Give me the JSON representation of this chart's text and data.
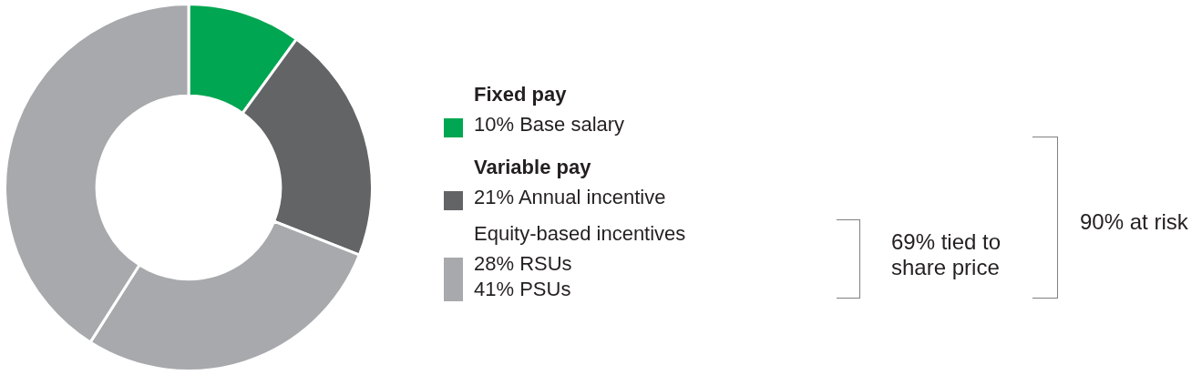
{
  "chart_data": {
    "type": "donut",
    "categories": [
      "Base salary",
      "Annual incentive",
      "RSUs",
      "PSUs"
    ],
    "values": [
      10,
      21,
      28,
      41
    ],
    "value_labels": [
      "10%",
      "21%",
      "28%",
      "41%"
    ],
    "colors": [
      "#00a651",
      "#636466",
      "#a7a9ac",
      "#a7a9ac"
    ],
    "legend": "right",
    "annotations": [
      "Fixed pay",
      "Variable pay",
      "Equity-based incentives",
      "69% tied to share price",
      "90% at risk"
    ]
  }
}
